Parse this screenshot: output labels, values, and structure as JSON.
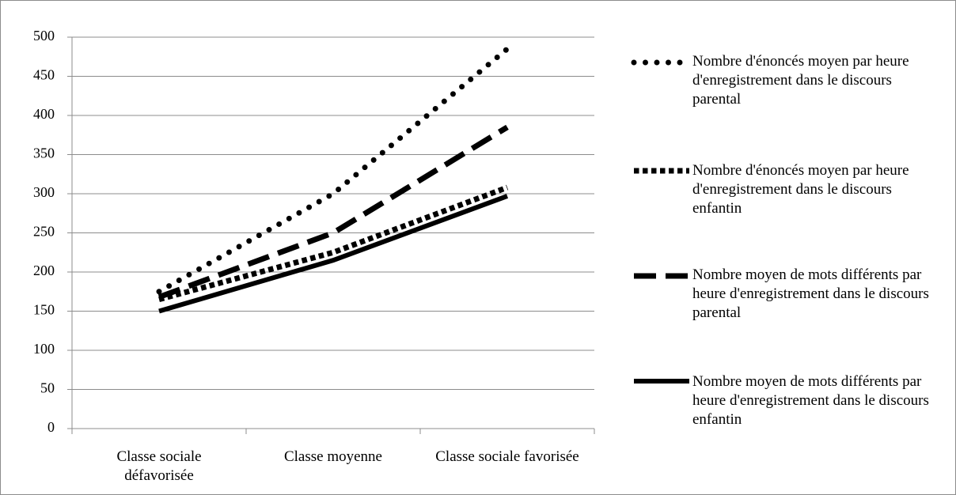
{
  "chart_data": {
    "type": "line",
    "categories": [
      "Classe sociale défavorisée",
      "Classe moyenne",
      "Classe sociale favorisée"
    ],
    "series": [
      {
        "name": "Nombre d'énoncés moyen par heure d'enregistrement dans le discours parental",
        "color": "#000000",
        "dash": "round-dot",
        "values": [
          175,
          300,
          485
        ]
      },
      {
        "name": "Nombre d'énoncés moyen par heure d'enregistrement dans le discours enfantin",
        "color": "#000000",
        "dash": "square-dot",
        "values": [
          165,
          225,
          308
        ]
      },
      {
        "name": "Nombre moyen de mots différents par heure d'enregistrement dans le discours parental",
        "color": "#000000",
        "dash": "dash",
        "values": [
          168,
          250,
          385
        ]
      },
      {
        "name": "Nombre moyen de mots différents par heure d'enregistrement dans le discours enfantin",
        "color": "#000000",
        "dash": "solid",
        "values": [
          150,
          215,
          297
        ]
      }
    ],
    "ylim": [
      0,
      500
    ],
    "yticks": [
      0,
      50,
      100,
      150,
      200,
      250,
      300,
      350,
      400,
      450,
      500
    ],
    "grid": true,
    "legend": "right"
  }
}
